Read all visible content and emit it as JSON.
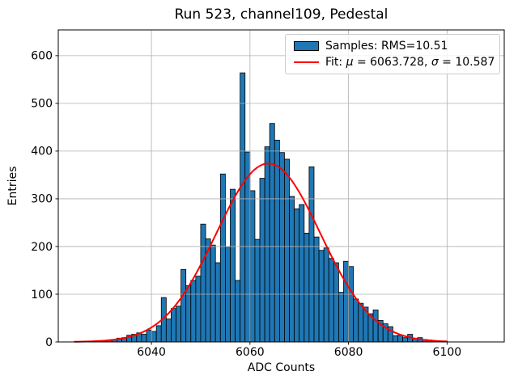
{
  "chart_data": {
    "type": "bar",
    "subtype": "histogram",
    "title": "Run 523, channel109, Pedestal",
    "xlabel": "ADC Counts",
    "ylabel": "Entries",
    "bin_start": 6030,
    "bin_width": 1,
    "counts": [
      2,
      3,
      5,
      8,
      9,
      14,
      16,
      19,
      16,
      25,
      22,
      34,
      93,
      48,
      70,
      75,
      152,
      118,
      129,
      138,
      247,
      216,
      203,
      166,
      352,
      200,
      320,
      129,
      564,
      398,
      317,
      215,
      343,
      409,
      458,
      423,
      397,
      383,
      305,
      279,
      288,
      228,
      367,
      220,
      192,
      197,
      175,
      166,
      104,
      169,
      158,
      90,
      81,
      73,
      59,
      67,
      45,
      38,
      32,
      13,
      14,
      9,
      16,
      7,
      9,
      5,
      4
    ],
    "samples_rms": 10.51,
    "fit": {
      "type": "gaussian",
      "mu": 6063.728,
      "sigma": 10.587,
      "amplitude": 374,
      "x_start": 6024.4,
      "x_end": 6100.2
    },
    "xticks": [
      6040,
      6060,
      6080,
      6100
    ],
    "yticks": [
      0,
      100,
      200,
      300,
      400,
      500,
      600
    ],
    "xlim": [
      6021.1,
      6111.6
    ],
    "ylim": [
      0,
      654
    ],
    "grid": true,
    "legend_position": "upper right",
    "colors": {
      "bar_fill": "#1f77b4",
      "bar_edge": "#000000",
      "fit_line": "#ff0000",
      "grid_line": "#b0b0b0",
      "spine": "#000000",
      "background": "#ffffff",
      "legend_border": "#cccccc"
    }
  },
  "legend": {
    "samples_label": "Samples: RMS=10.51",
    "fit_prefix": "Fit: ",
    "fit_mu_symbol": "μ",
    "fit_mu_value": " = 6063.728, ",
    "fit_sigma_symbol": "σ",
    "fit_sigma_value": " = 10.587"
  }
}
